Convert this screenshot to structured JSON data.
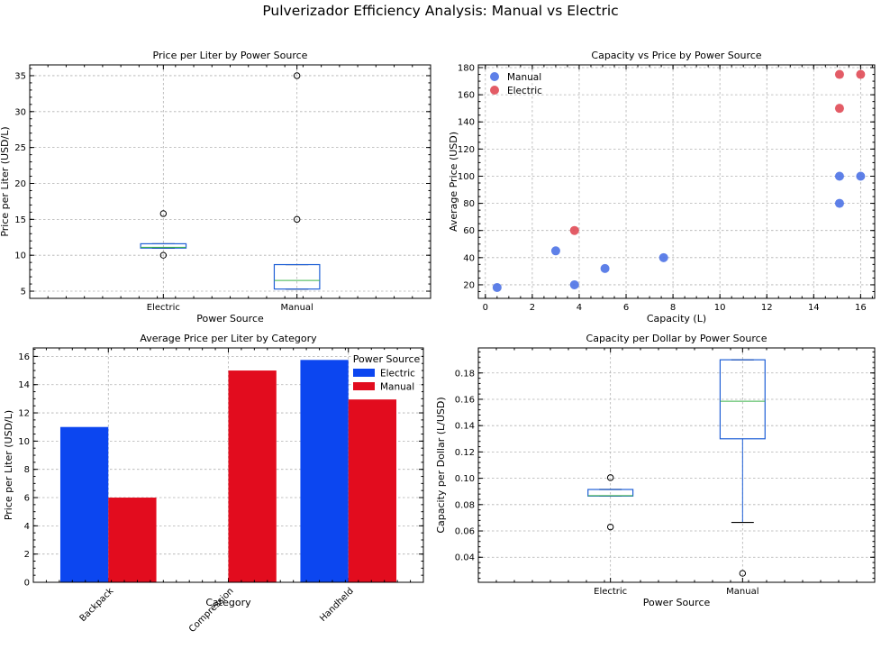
{
  "figure": {
    "suptitle": "Pulverizador Efficiency Analysis: Manual vs Electric"
  },
  "chart_data": [
    {
      "id": "p1",
      "type": "box",
      "title": "Price per Liter by Power Source",
      "xlabel": "Power Source",
      "ylabel": "Price per Liter (USD/L)",
      "categories": [
        "Electric",
        "Manual"
      ],
      "ylim": [
        4,
        36.5
      ],
      "yticks": [
        5,
        10,
        15,
        20,
        25,
        30,
        35
      ],
      "ytick_labels": [
        "5",
        "10",
        "15",
        "20",
        "25",
        "30",
        "35"
      ],
      "boxes": [
        {
          "q1": 11.0,
          "median": 11.1,
          "q3": 11.6,
          "whislo": 11.0,
          "whishi": 11.6,
          "fliers": [
            15.8,
            10.0
          ]
        },
        {
          "q1": 5.3,
          "median": 6.5,
          "q3": 8.7,
          "whislo": 5.3,
          "whishi": 8.7,
          "fliers": [
            15.0,
            35.0
          ]
        }
      ]
    },
    {
      "id": "p2",
      "type": "scatter",
      "title": "Capacity vs Price by Power Source",
      "xlabel": "Capacity (L)",
      "ylabel": "Average Price (USD)",
      "xlim": [
        -0.3,
        16.6
      ],
      "ylim": [
        10,
        182
      ],
      "xticks": [
        0,
        2,
        4,
        6,
        8,
        10,
        12,
        14,
        16
      ],
      "xtick_labels": [
        "0",
        "2",
        "4",
        "6",
        "8",
        "10",
        "12",
        "14",
        "16"
      ],
      "yticks": [
        20,
        40,
        60,
        80,
        100,
        120,
        140,
        160,
        180
      ],
      "ytick_labels": [
        "20",
        "40",
        "60",
        "80",
        "100",
        "120",
        "140",
        "160",
        "180"
      ],
      "legend": "top-left",
      "series": [
        {
          "name": "Manual",
          "color": "#4c72e6",
          "x": [
            0.5,
            3,
            3.8,
            5.1,
            7.6,
            15.1,
            15.1,
            16
          ],
          "y": [
            18,
            45,
            20,
            32,
            40,
            100,
            80,
            100
          ]
        },
        {
          "name": "Electric",
          "color": "#e04a55",
          "x": [
            3.8,
            15.1,
            15.1,
            16
          ],
          "y": [
            60,
            175,
            150,
            175
          ]
        }
      ]
    },
    {
      "id": "p3",
      "type": "bar",
      "title": "Average Price per Liter by Category",
      "xlabel": "Category",
      "ylabel": "Price per Liter (USD/L)",
      "categories": [
        "Backpack",
        "Compression",
        "Handheld"
      ],
      "ylim": [
        0,
        16.6
      ],
      "yticks": [
        0,
        2,
        4,
        6,
        8,
        10,
        12,
        14,
        16
      ],
      "ytick_labels": [
        "0",
        "2",
        "4",
        "6",
        "8",
        "10",
        "12",
        "14",
        "16"
      ],
      "legend_title": "Power Source",
      "legend": "top-right",
      "series": [
        {
          "name": "Electric",
          "color": "#0c46f0",
          "values": [
            11.0,
            null,
            15.75
          ]
        },
        {
          "name": "Manual",
          "color": "#e20c1e",
          "values": [
            6.0,
            15.0,
            12.95
          ]
        }
      ]
    },
    {
      "id": "p4",
      "type": "box",
      "title": "Capacity per Dollar by Power Source",
      "xlabel": "Power Source",
      "ylabel": "Capacity per Dollar (L/USD)",
      "categories": [
        "Electric",
        "Manual"
      ],
      "ylim": [
        0.021,
        0.199
      ],
      "yticks": [
        0.04,
        0.06,
        0.08,
        0.1,
        0.12,
        0.14,
        0.16,
        0.18
      ],
      "ytick_labels": [
        "0.04",
        "0.06",
        "0.08",
        "0.10",
        "0.12",
        "0.14",
        "0.16",
        "0.18"
      ],
      "boxes": [
        {
          "q1": 0.0865,
          "median": 0.0868,
          "q3": 0.0915,
          "whislo": 0.0865,
          "whishi": 0.0915,
          "fliers": [
            0.1005,
            0.063
          ]
        },
        {
          "q1": 0.13,
          "median": 0.1585,
          "q3": 0.19,
          "whislo": 0.0665,
          "whishi": 0.19,
          "fliers": [
            0.0278
          ]
        }
      ]
    }
  ]
}
